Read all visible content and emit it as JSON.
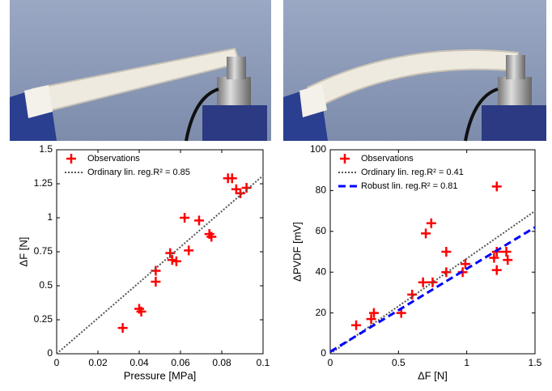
{
  "chart_data": [
    {
      "type": "scatter",
      "xlabel": "Pressure [MPa]",
      "ylabel": "ΔF [N]",
      "xlim": [
        0,
        0.1
      ],
      "xticks": [
        0,
        0.02,
        0.04,
        0.06,
        0.08,
        0.1
      ],
      "ylim": [
        0,
        1.5
      ],
      "yticks": [
        0,
        0.25,
        0.5,
        0.75,
        1,
        1.25,
        1.5
      ],
      "legend": "upper left",
      "series": [
        {
          "name": "Observations",
          "color": "#ff0000",
          "style": "markers",
          "x": [
            0.032,
            0.04,
            0.041,
            0.048,
            0.048,
            0.055,
            0.056,
            0.058,
            0.062,
            0.064,
            0.069,
            0.074,
            0.075,
            0.083,
            0.085,
            0.087,
            0.089,
            0.092
          ],
          "values": [
            0.19,
            0.33,
            0.31,
            0.61,
            0.53,
            0.74,
            0.69,
            0.68,
            1.0,
            0.76,
            0.98,
            0.88,
            0.86,
            1.29,
            1.29,
            1.21,
            1.18,
            1.22
          ]
        },
        {
          "name": "Ordinary lin. reg.R² = 0.85",
          "color": "#555555",
          "style": "dotted",
          "x": [
            0,
            0.1
          ],
          "values": [
            0,
            1.31
          ]
        }
      ]
    },
    {
      "type": "scatter",
      "xlabel": "ΔF [N]",
      "ylabel": "ΔPVDF [mV]",
      "xlim": [
        0,
        1.5
      ],
      "xticks": [
        0,
        0.5,
        1,
        1.5
      ],
      "ylim": [
        0,
        100
      ],
      "yticks": [
        0,
        20,
        40,
        60,
        80,
        100
      ],
      "legend": "upper left",
      "series": [
        {
          "name": "Observations",
          "color": "#ff0000",
          "style": "markers",
          "x": [
            0.19,
            0.3,
            0.32,
            0.52,
            0.6,
            0.68,
            0.7,
            0.74,
            0.75,
            0.85,
            0.85,
            0.97,
            0.99,
            1.2,
            1.22,
            1.22,
            1.22,
            1.29,
            1.3
          ],
          "values": [
            14,
            17,
            20,
            20,
            29,
            35,
            59,
            64,
            35,
            50,
            40,
            40,
            44,
            47,
            50,
            41,
            82,
            50,
            46
          ]
        },
        {
          "name": "Ordinary lin. reg.R² = 0.41",
          "color": "#555555",
          "style": "dotted",
          "x": [
            0,
            1.5
          ],
          "values": [
            0,
            70
          ]
        },
        {
          "name": "Robust lin. reg.R² = 0.81",
          "color": "#0000ff",
          "style": "dashed",
          "x": [
            0,
            1.5
          ],
          "values": [
            1,
            62
          ]
        }
      ]
    }
  ]
}
